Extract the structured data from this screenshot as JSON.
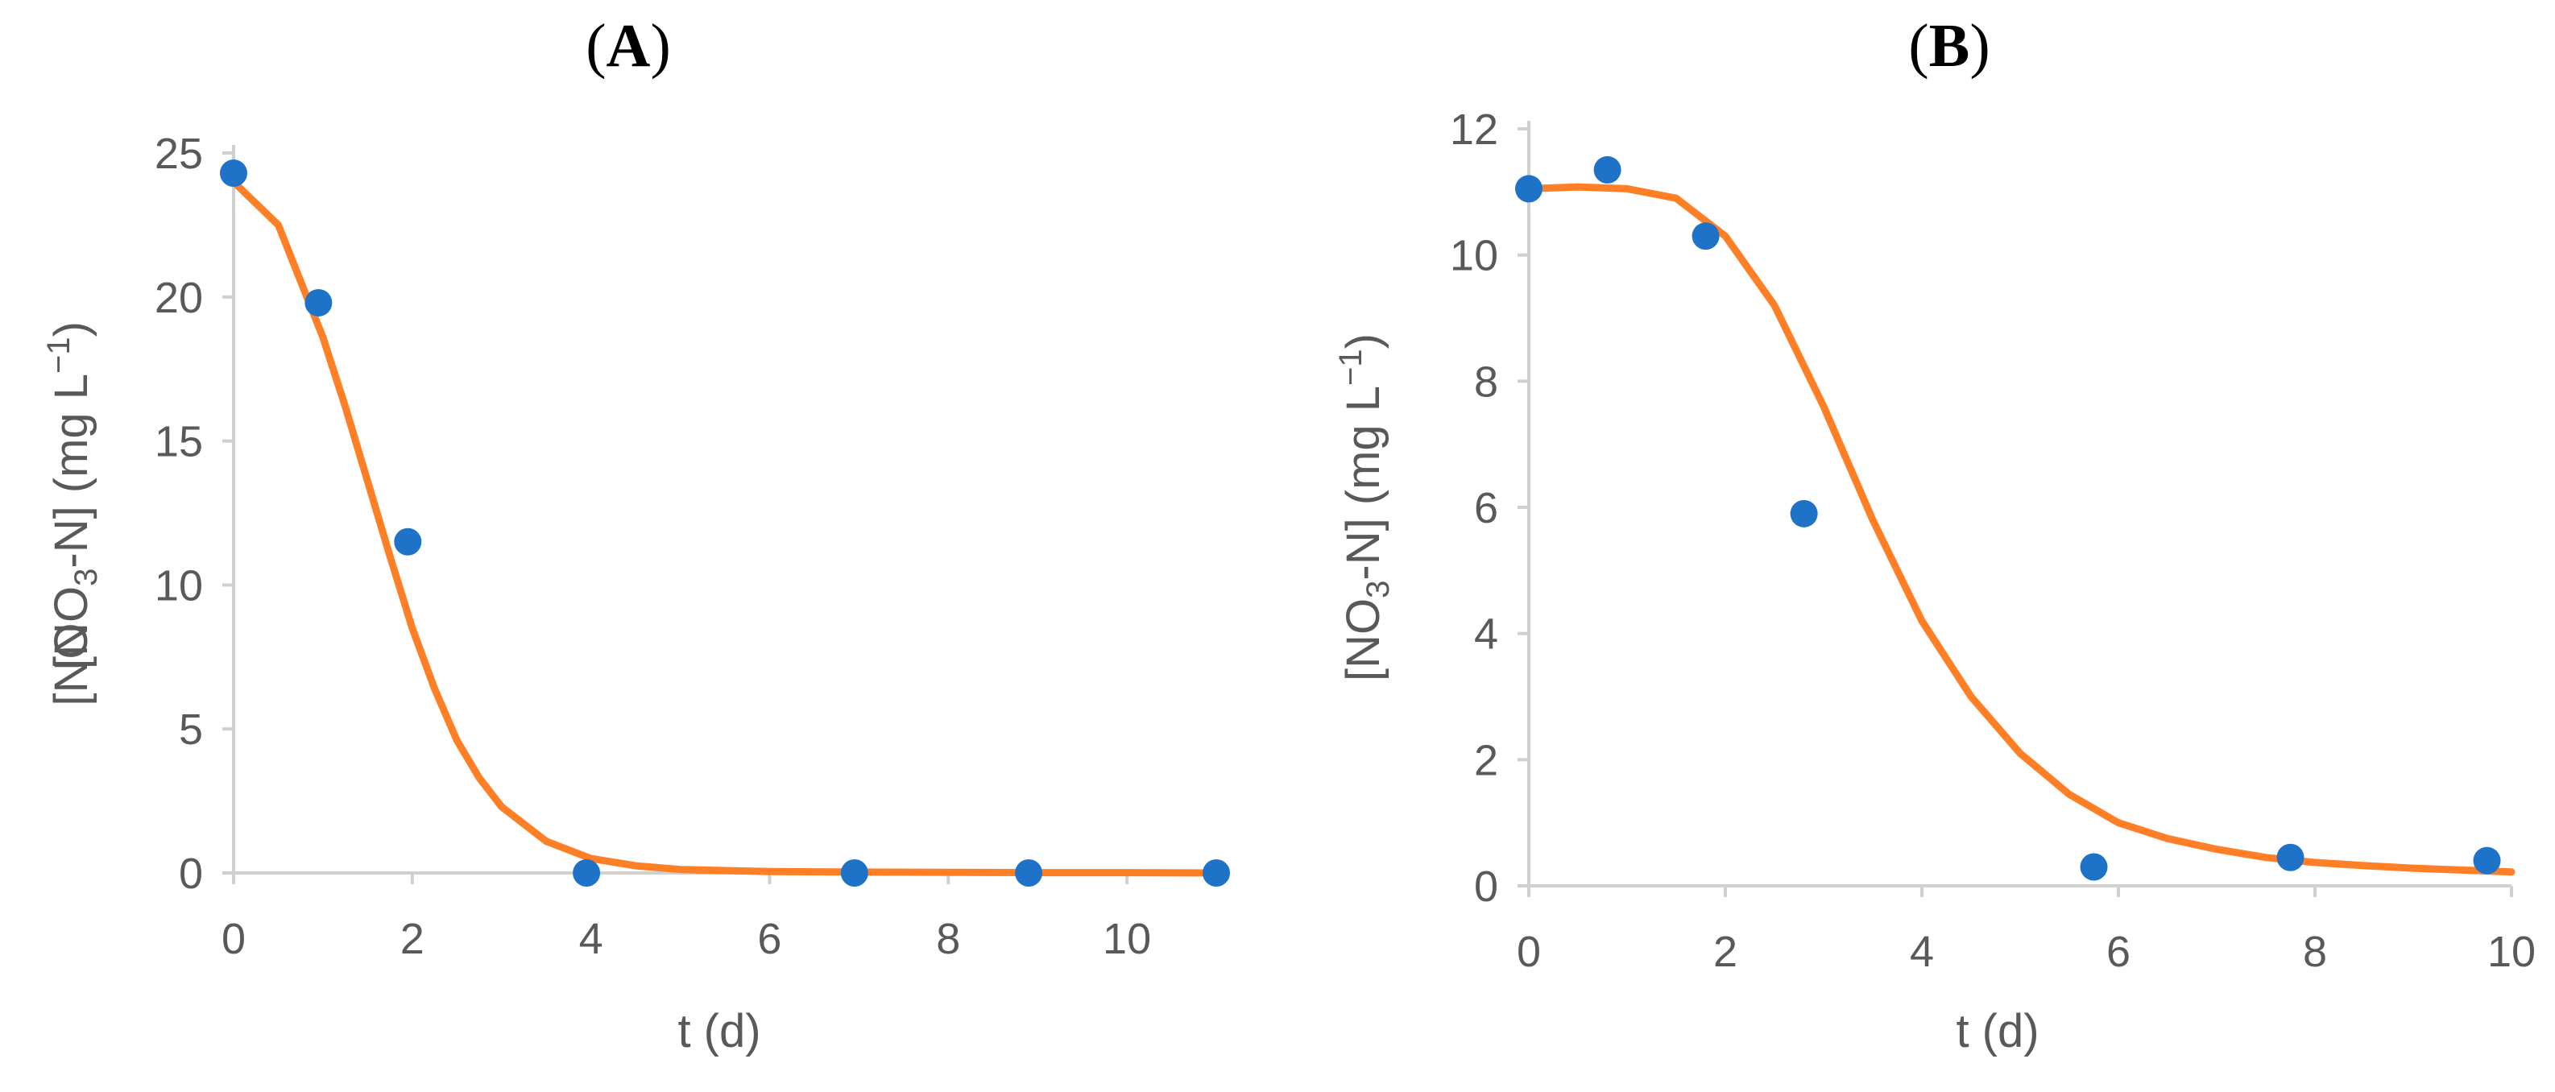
{
  "colors": {
    "points": "#1e73c8",
    "fit": "#ff7f27",
    "axis": "#d0d0d0",
    "text": "#595959"
  },
  "chart_data": [
    {
      "type": "scatter",
      "panel_label": {
        "open": "(",
        "letter": "A",
        "close": ")"
      },
      "xlabel": "t (d)",
      "ylabel": {
        "prefix": "[NO",
        "sub": "3",
        "middle": "-N] (mg L",
        "sup": "−1",
        "suffix": ")"
      },
      "ylabel_overlap": "[NO",
      "xlim": [
        0,
        11
      ],
      "ylim": [
        0,
        25
      ],
      "x_ticks": [
        "0",
        "2",
        "4",
        "6",
        "8",
        "10"
      ],
      "y_ticks": [
        "0",
        "5",
        "10",
        "15",
        "20",
        "25"
      ],
      "grid": false,
      "series": [
        {
          "kind": "points",
          "x": [
            0,
            0.95,
            1.95,
            3.95,
            6.95,
            8.9,
            11
          ],
          "y": [
            24.3,
            19.8,
            11.5,
            0.0,
            0.0,
            0.0,
            0.0
          ]
        },
        {
          "kind": "fit_curve",
          "x": [
            0,
            0.5,
            1,
            1.25,
            1.5,
            1.75,
            2,
            2.25,
            2.5,
            2.75,
            3,
            3.5,
            4,
            4.5,
            5,
            6,
            7,
            8,
            9,
            10,
            11
          ],
          "y": [
            24.0,
            22.5,
            18.6,
            16.2,
            13.6,
            11.0,
            8.5,
            6.4,
            4.6,
            3.3,
            2.3,
            1.1,
            0.5,
            0.25,
            0.12,
            0.05,
            0.03,
            0.02,
            0.01,
            0.01,
            0.0
          ]
        }
      ]
    },
    {
      "type": "scatter",
      "panel_label": {
        "open": "(",
        "letter": "B",
        "close": ")"
      },
      "xlabel": "t (d)",
      "ylabel": {
        "prefix": "[NO",
        "sub": "3",
        "middle": "-N] (mg L",
        "sup": "−1",
        "suffix": ")"
      },
      "xlim": [
        0,
        10
      ],
      "ylim": [
        0,
        12
      ],
      "x_ticks": [
        "0",
        "2",
        "4",
        "6",
        "8",
        "10"
      ],
      "y_ticks": [
        "0",
        "2",
        "4",
        "6",
        "8",
        "10",
        "12"
      ],
      "grid": false,
      "series": [
        {
          "kind": "points",
          "x": [
            0,
            0.8,
            1.8,
            2.8,
            5.75,
            7.75,
            9.75
          ],
          "y": [
            11.05,
            11.35,
            10.3,
            5.9,
            0.3,
            0.45,
            0.4
          ]
        },
        {
          "kind": "fit_curve",
          "x": [
            0,
            0.5,
            1,
            1.5,
            2,
            2.5,
            3,
            3.5,
            4,
            4.5,
            5,
            5.5,
            6,
            6.5,
            7,
            7.5,
            8,
            8.5,
            9,
            9.5,
            10
          ],
          "y": [
            11.05,
            11.08,
            11.05,
            10.9,
            10.3,
            9.2,
            7.6,
            5.8,
            4.2,
            3.0,
            2.1,
            1.45,
            1.0,
            0.75,
            0.58,
            0.45,
            0.37,
            0.32,
            0.28,
            0.25,
            0.22
          ]
        }
      ]
    }
  ]
}
